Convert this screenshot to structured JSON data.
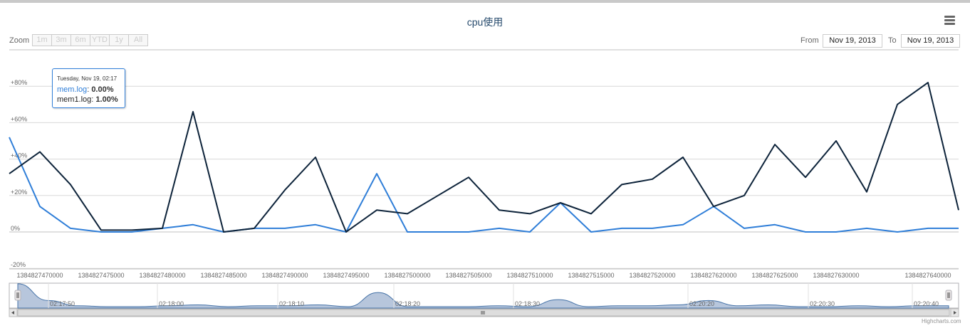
{
  "chart_title": "cpu使用",
  "zoom": {
    "label": "Zoom",
    "buttons": [
      "1m",
      "3m",
      "6m",
      "YTD",
      "1y",
      "All"
    ]
  },
  "range": {
    "from_label": "From",
    "from_value": "Nov 19, 2013",
    "to_label": "To",
    "to_value": "Nov 19, 2013"
  },
  "tooltip": {
    "date": "Tuesday, Nov 19, 02:17",
    "rows": [
      {
        "name": "mem.log",
        "value": "0.00%"
      },
      {
        "name": "mem1.log",
        "value": "1.00%"
      }
    ]
  },
  "credits": "Highcharts.com",
  "colors": {
    "mem_log": "#2f7ed8",
    "mem1_log": "#0d233a",
    "navigator_fill": "#b7c6dc",
    "title": "#274b6d"
  },
  "chart_data": {
    "type": "line",
    "title": "cpu使用",
    "ylim": [
      -20,
      90
    ],
    "y_ticks": [
      "-20%",
      "0%",
      "+20%",
      "+40%",
      "+60%",
      "+80%"
    ],
    "y_tick_values": [
      -20,
      0,
      20,
      40,
      60,
      80
    ],
    "grid": true,
    "x_tick_labels": [
      "1384827470000",
      "1384827475000",
      "1384827480000",
      "1384827485000",
      "1384827490000",
      "1384827495000",
      "1384827500000",
      "1384827505000",
      "1384827510000",
      "1384827515000",
      "1384827520000",
      "1384827620000",
      "1384827625000",
      "1384827630000",
      "1384827640000"
    ],
    "x_tick_index": [
      1,
      3,
      5,
      7,
      9,
      11,
      13,
      15,
      17,
      19,
      21,
      23,
      25,
      27,
      30
    ],
    "series": [
      {
        "name": "mem.log",
        "values": [
          52,
          14,
          2,
          0,
          0,
          2,
          4,
          0,
          2,
          2,
          4,
          0,
          32,
          0,
          0,
          0,
          2,
          0,
          16,
          0,
          2,
          2,
          4,
          14,
          2,
          4,
          0,
          0,
          2,
          0,
          2,
          2
        ]
      },
      {
        "name": "mem1.log",
        "values": [
          32,
          44,
          26,
          1,
          1,
          2,
          66,
          0,
          2,
          23,
          41,
          0,
          12,
          10,
          20,
          30,
          12,
          10,
          16,
          10,
          26,
          29,
          41,
          14,
          20,
          48,
          30,
          50,
          22,
          70,
          82,
          12
        ]
      }
    ],
    "navigator": {
      "time_labels": [
        "02:17:50",
        "02:18:00",
        "02:18:10",
        "02:18:20",
        "02:18:30",
        "02:20:20",
        "02:20:30",
        "02:20:40"
      ],
      "values": [
        52,
        14,
        2,
        0,
        0,
        2,
        4,
        0,
        2,
        2,
        4,
        0,
        32,
        0,
        0,
        0,
        2,
        0,
        16,
        0,
        2,
        2,
        4,
        14,
        2,
        4,
        0,
        0,
        2,
        0,
        2,
        2
      ]
    }
  }
}
